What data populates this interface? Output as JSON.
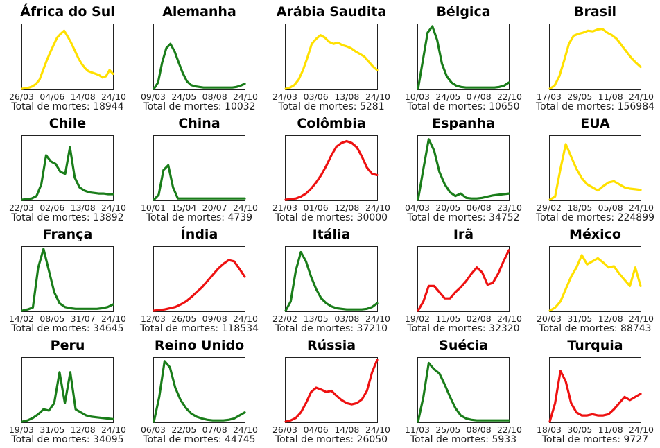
{
  "total_label": "Total de mortes: ",
  "colors": {
    "green": "#1a7d1a",
    "yellow": "#ffe000",
    "red": "#ee1111"
  },
  "chart_data": [
    {
      "type": "line",
      "title": "África do Sul",
      "color": "yellow",
      "x_ticks": [
        "26/03",
        "04/06",
        "14/08",
        "24/10"
      ],
      "total": "18944",
      "series": [
        {
          "values": [
            0,
            0.01,
            0.02,
            0.04,
            0.08,
            0.15,
            0.3,
            0.45,
            0.58,
            0.7,
            0.82,
            0.88,
            0.93,
            0.84,
            0.74,
            0.62,
            0.5,
            0.4,
            0.33,
            0.28,
            0.26,
            0.24,
            0.22,
            0.18,
            0.2,
            0.3,
            0.24
          ]
        }
      ]
    },
    {
      "type": "line",
      "title": "Alemanha",
      "color": "green",
      "x_ticks": [
        "09/03",
        "24/05",
        "08/08",
        "24/10"
      ],
      "total": "10032",
      "series": [
        {
          "values": [
            0,
            0.1,
            0.42,
            0.65,
            0.72,
            0.6,
            0.42,
            0.25,
            0.12,
            0.06,
            0.04,
            0.03,
            0.02,
            0.02,
            0.02,
            0.02,
            0.02,
            0.02,
            0.02,
            0.02,
            0.03,
            0.05,
            0.08
          ]
        }
      ]
    },
    {
      "type": "line",
      "title": "Arábia Saudita",
      "color": "yellow",
      "x_ticks": [
        "24/03",
        "03/06",
        "13/08",
        "24/10"
      ],
      "total": "5281",
      "series": [
        {
          "values": [
            0,
            0.02,
            0.06,
            0.15,
            0.3,
            0.5,
            0.72,
            0.8,
            0.86,
            0.82,
            0.75,
            0.72,
            0.74,
            0.7,
            0.68,
            0.65,
            0.6,
            0.56,
            0.52,
            0.44,
            0.36,
            0.3
          ]
        }
      ]
    },
    {
      "type": "line",
      "title": "Bélgica",
      "color": "green",
      "x_ticks": [
        "10/03",
        "24/05",
        "07/08",
        "22/10"
      ],
      "total": "10650",
      "series": [
        {
          "values": [
            0,
            0.45,
            0.9,
            1.0,
            0.78,
            0.4,
            0.2,
            0.1,
            0.05,
            0.03,
            0.02,
            0.02,
            0.02,
            0.02,
            0.02,
            0.02,
            0.02,
            0.03,
            0.05,
            0.1
          ]
        }
      ]
    },
    {
      "type": "line",
      "title": "Brasil",
      "color": "yellow",
      "x_ticks": [
        "17/03",
        "29/05",
        "11/08",
        "24/10"
      ],
      "total": "156984",
      "series": [
        {
          "values": [
            0,
            0.05,
            0.2,
            0.45,
            0.72,
            0.85,
            0.88,
            0.9,
            0.93,
            0.92,
            0.95,
            0.96,
            0.9,
            0.86,
            0.8,
            0.7,
            0.6,
            0.5,
            0.42,
            0.35
          ]
        }
      ]
    },
    {
      "type": "line",
      "title": "Chile",
      "color": "green",
      "x_ticks": [
        "22/03",
        "02/06",
        "13/08",
        "24/10"
      ],
      "total": "13892",
      "series": [
        {
          "values": [
            0,
            0.01,
            0.02,
            0.06,
            0.25,
            0.72,
            0.62,
            0.58,
            0.45,
            0.42,
            0.85,
            0.36,
            0.2,
            0.15,
            0.12,
            0.11,
            0.1,
            0.1,
            0.09,
            0.09
          ]
        }
      ]
    },
    {
      "type": "line",
      "title": "China",
      "color": "green",
      "x_ticks": [
        "10/01",
        "15/04",
        "20/07",
        "24/10"
      ],
      "total": "4739",
      "series": [
        {
          "values": [
            0,
            0.08,
            0.48,
            0.56,
            0.2,
            0.02,
            0.02,
            0.02,
            0.02,
            0.02,
            0.02,
            0.02,
            0.02,
            0.02,
            0.02,
            0.02,
            0.02,
            0.02,
            0.02,
            0.02
          ]
        }
      ]
    },
    {
      "type": "line",
      "title": "Colômbia",
      "color": "red",
      "x_ticks": [
        "21/03",
        "01/06",
        "12/08",
        "24/10"
      ],
      "total": "30000",
      "series": [
        {
          "values": [
            0,
            0.01,
            0.02,
            0.05,
            0.1,
            0.18,
            0.28,
            0.4,
            0.55,
            0.72,
            0.86,
            0.92,
            0.95,
            0.92,
            0.85,
            0.7,
            0.52,
            0.42,
            0.4
          ]
        }
      ]
    },
    {
      "type": "line",
      "title": "Espanha",
      "color": "green",
      "x_ticks": [
        "04/03",
        "20/05",
        "06/08",
        "23/10"
      ],
      "total": "34752",
      "series": [
        {
          "values": [
            0,
            0.5,
            0.98,
            0.8,
            0.45,
            0.25,
            0.12,
            0.06,
            0.1,
            0.03,
            0.02,
            0.02,
            0.03,
            0.05,
            0.07,
            0.08,
            0.09,
            0.1
          ]
        }
      ]
    },
    {
      "type": "line",
      "title": "EUA",
      "color": "yellow",
      "x_ticks": [
        "29/02",
        "18/05",
        "05/08",
        "24/10"
      ],
      "total": "224899",
      "series": [
        {
          "values": [
            0,
            0.05,
            0.5,
            0.9,
            0.7,
            0.5,
            0.35,
            0.25,
            0.2,
            0.15,
            0.22,
            0.28,
            0.3,
            0.25,
            0.2,
            0.18,
            0.17,
            0.16
          ]
        }
      ]
    },
    {
      "type": "line",
      "title": "França",
      "color": "green",
      "x_ticks": [
        "14/02",
        "08/05",
        "31/07",
        "24/10"
      ],
      "total": "34645",
      "series": [
        {
          "values": [
            0,
            0.02,
            0.05,
            0.7,
            1.0,
            0.65,
            0.3,
            0.12,
            0.06,
            0.04,
            0.03,
            0.03,
            0.03,
            0.03,
            0.03,
            0.04,
            0.06,
            0.1
          ]
        }
      ]
    },
    {
      "type": "line",
      "title": "Índia",
      "color": "red",
      "x_ticks": [
        "12/03",
        "26/05",
        "09/08",
        "24/10"
      ],
      "total": "118534",
      "series": [
        {
          "values": [
            0,
            0.01,
            0.02,
            0.04,
            0.06,
            0.1,
            0.15,
            0.22,
            0.3,
            0.38,
            0.48,
            0.58,
            0.68,
            0.76,
            0.82,
            0.8,
            0.68,
            0.55
          ]
        }
      ]
    },
    {
      "type": "line",
      "title": "Itália",
      "color": "green",
      "x_ticks": [
        "22/02",
        "13/05",
        "03/08",
        "24/10"
      ],
      "total": "37210",
      "series": [
        {
          "values": [
            0,
            0.15,
            0.65,
            0.95,
            0.8,
            0.55,
            0.35,
            0.2,
            0.12,
            0.07,
            0.04,
            0.03,
            0.02,
            0.02,
            0.02,
            0.02,
            0.03,
            0.06,
            0.12
          ]
        }
      ]
    },
    {
      "type": "line",
      "title": "Irã",
      "color": "red",
      "x_ticks": [
        "19/02",
        "11/05",
        "02/08",
        "24/10"
      ],
      "total": "32320",
      "series": [
        {
          "values": [
            0,
            0.15,
            0.4,
            0.4,
            0.3,
            0.2,
            0.2,
            0.3,
            0.38,
            0.48,
            0.6,
            0.7,
            0.62,
            0.42,
            0.45,
            0.6,
            0.8,
            0.98
          ]
        }
      ]
    },
    {
      "type": "line",
      "title": "México",
      "color": "yellow",
      "x_ticks": [
        "20/03",
        "31/05",
        "12/08",
        "24/10"
      ],
      "total": "88743",
      "series": [
        {
          "values": [
            0,
            0.05,
            0.15,
            0.35,
            0.55,
            0.7,
            0.9,
            0.75,
            0.8,
            0.85,
            0.78,
            0.7,
            0.72,
            0.6,
            0.5,
            0.4,
            0.7,
            0.4
          ]
        }
      ]
    },
    {
      "type": "line",
      "title": "Peru",
      "color": "green",
      "x_ticks": [
        "19/03",
        "31/05",
        "12/08",
        "24/10"
      ],
      "total": "34095",
      "series": [
        {
          "values": [
            0,
            0.02,
            0.06,
            0.12,
            0.2,
            0.18,
            0.3,
            0.8,
            0.3,
            0.8,
            0.2,
            0.15,
            0.1,
            0.08,
            0.07,
            0.06,
            0.05,
            0.04
          ]
        }
      ]
    },
    {
      "type": "line",
      "title": "Reino Unido",
      "color": "green",
      "x_ticks": [
        "06/03",
        "22/05",
        "07/08",
        "24/10"
      ],
      "total": "44745",
      "series": [
        {
          "values": [
            0,
            0.4,
            0.98,
            0.88,
            0.55,
            0.35,
            0.22,
            0.13,
            0.08,
            0.05,
            0.03,
            0.02,
            0.02,
            0.02,
            0.03,
            0.05,
            0.1,
            0.15
          ]
        }
      ]
    },
    {
      "type": "line",
      "title": "Rússia",
      "color": "red",
      "x_ticks": [
        "26/03",
        "04/06",
        "14/08",
        "24/10"
      ],
      "total": "26050",
      "series": [
        {
          "values": [
            0,
            0.02,
            0.06,
            0.15,
            0.3,
            0.48,
            0.55,
            0.52,
            0.48,
            0.5,
            0.42,
            0.35,
            0.3,
            0.28,
            0.3,
            0.36,
            0.5,
            0.8,
            1.0
          ]
        }
      ]
    },
    {
      "type": "line",
      "title": "Suécia",
      "color": "green",
      "x_ticks": [
        "11/03",
        "25/05",
        "08/08",
        "22/10"
      ],
      "total": "5933",
      "series": [
        {
          "values": [
            0,
            0.4,
            0.95,
            0.85,
            0.78,
            0.6,
            0.4,
            0.22,
            0.1,
            0.05,
            0.03,
            0.02,
            0.02,
            0.02,
            0.02,
            0.02,
            0.02,
            0.02
          ]
        }
      ]
    },
    {
      "type": "line",
      "title": "Turquia",
      "color": "red",
      "x_ticks": [
        "18/03",
        "30/05",
        "11/08",
        "24/10"
      ],
      "total": "9727",
      "series": [
        {
          "values": [
            0,
            0.3,
            0.82,
            0.65,
            0.3,
            0.15,
            0.1,
            0.1,
            0.12,
            0.1,
            0.1,
            0.12,
            0.2,
            0.3,
            0.4,
            0.35,
            0.4,
            0.45
          ]
        }
      ]
    }
  ]
}
